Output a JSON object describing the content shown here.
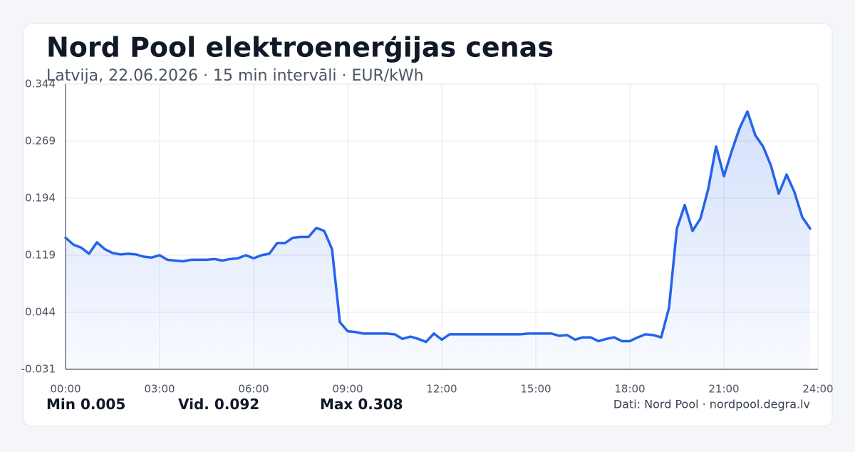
{
  "chart_data": {
    "type": "line",
    "title": "Nord Pool elektroenerģijas cenas",
    "subtitle": "Latvija, 22.06.2026 · 15 min intervāli · EUR/kWh",
    "color": "#2563eb",
    "grid": true,
    "x": [
      0,
      0.25,
      0.5,
      0.75,
      1,
      1.25,
      1.5,
      1.75,
      2,
      2.25,
      2.5,
      2.75,
      3,
      3.25,
      3.5,
      3.75,
      4,
      4.25,
      4.5,
      4.75,
      5,
      5.25,
      5.5,
      5.75,
      6,
      6.25,
      6.5,
      6.75,
      7,
      7.25,
      7.5,
      7.75,
      8,
      8.25,
      8.5,
      8.75,
      9,
      9.25,
      9.5,
      9.75,
      10,
      10.25,
      10.5,
      10.75,
      11,
      11.25,
      11.5,
      11.75,
      12,
      12.25,
      12.5,
      12.75,
      13,
      13.25,
      13.5,
      13.75,
      14,
      14.25,
      14.5,
      14.75,
      15,
      15.25,
      15.5,
      15.75,
      16,
      16.25,
      16.5,
      16.75,
      17,
      17.25,
      17.5,
      17.75,
      18,
      18.25,
      18.5,
      18.75,
      19,
      19.25,
      19.5,
      19.75,
      20,
      20.25,
      20.5,
      20.75,
      21,
      21.25,
      21.5,
      21.75,
      22,
      22.25,
      22.5,
      22.75,
      23,
      23.25,
      23.5,
      23.75
    ],
    "values": [
      0.142,
      0.133,
      0.129,
      0.121,
      0.136,
      0.127,
      0.122,
      0.12,
      0.121,
      0.12,
      0.117,
      0.116,
      0.119,
      0.113,
      0.112,
      0.111,
      0.113,
      0.113,
      0.113,
      0.114,
      0.112,
      0.114,
      0.115,
      0.119,
      0.115,
      0.119,
      0.121,
      0.135,
      0.135,
      0.142,
      0.143,
      0.143,
      0.155,
      0.151,
      0.127,
      0.031,
      0.019,
      0.018,
      0.016,
      0.016,
      0.016,
      0.016,
      0.015,
      0.009,
      0.012,
      0.009,
      0.005,
      0.016,
      0.008,
      0.015,
      0.015,
      0.015,
      0.015,
      0.015,
      0.015,
      0.015,
      0.015,
      0.015,
      0.015,
      0.016,
      0.016,
      0.016,
      0.016,
      0.013,
      0.014,
      0.008,
      0.011,
      0.011,
      0.006,
      0.009,
      0.011,
      0.006,
      0.006,
      0.011,
      0.015,
      0.014,
      0.011,
      0.05,
      0.154,
      0.185,
      0.151,
      0.167,
      0.206,
      0.262,
      0.223,
      0.256,
      0.286,
      0.308,
      0.277,
      0.262,
      0.237,
      0.2,
      0.225,
      0.202,
      0.169,
      0.154
    ],
    "xlim": [
      0,
      24
    ],
    "xticks": [
      {
        "value": 0,
        "label": "00:00"
      },
      {
        "value": 3,
        "label": "03:00"
      },
      {
        "value": 6,
        "label": "06:00"
      },
      {
        "value": 9,
        "label": "09:00"
      },
      {
        "value": 12,
        "label": "12:00"
      },
      {
        "value": 15,
        "label": "15:00"
      },
      {
        "value": 18,
        "label": "18:00"
      },
      {
        "value": 21,
        "label": "21:00"
      },
      {
        "value": 24,
        "label": "24:00"
      }
    ],
    "ylim": [
      -0.031,
      0.344
    ],
    "yticks": [
      -0.031,
      0.044,
      0.119,
      0.194,
      0.269,
      0.344
    ],
    "stats": [
      {
        "label": "Min",
        "value": 0.005
      },
      {
        "label": "Vid.",
        "value": 0.092
      },
      {
        "label": "Max",
        "value": 0.308
      }
    ],
    "source": "Dati: Nord Pool · nordpool.degra.lv"
  }
}
